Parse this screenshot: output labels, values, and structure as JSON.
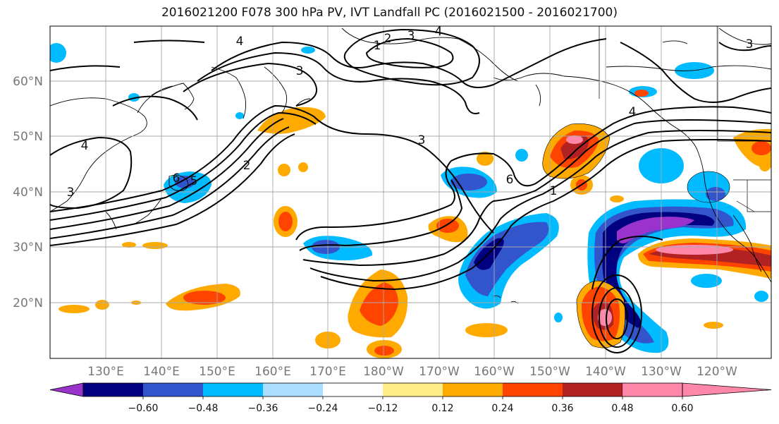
{
  "title": "2016021200 F078 300 hPa PV, IVT Landfall PC (2016021500 - 2016021700)",
  "map": {
    "lat_ticks": [
      "60°N",
      "50°N",
      "40°N",
      "30°N",
      "20°N"
    ],
    "lon_ticks": [
      "130°E",
      "140°E",
      "150°E",
      "160°E",
      "170°E",
      "180°W",
      "170°W",
      "160°W",
      "150°W",
      "140°W",
      "130°W",
      "120°W"
    ],
    "contour_labels": [
      "4",
      "2",
      "3",
      "4",
      "1",
      "3",
      "4",
      "2",
      "6",
      "5",
      "3",
      "6",
      "1",
      "4",
      "3",
      "3"
    ]
  },
  "colorbar": {
    "colors": [
      "#9933cc",
      "#000080",
      "#3355cc",
      "#00bbff",
      "#aaddff",
      "#ffffff",
      "#ffee88",
      "#ffaa00",
      "#ff4400",
      "#b22222",
      "#ff88aa"
    ],
    "labels": [
      "−0.60",
      "−0.48",
      "−0.36",
      "−0.24",
      "−0.12",
      "0.12",
      "0.24",
      "0.36",
      "0.48",
      "0.60"
    ]
  }
}
